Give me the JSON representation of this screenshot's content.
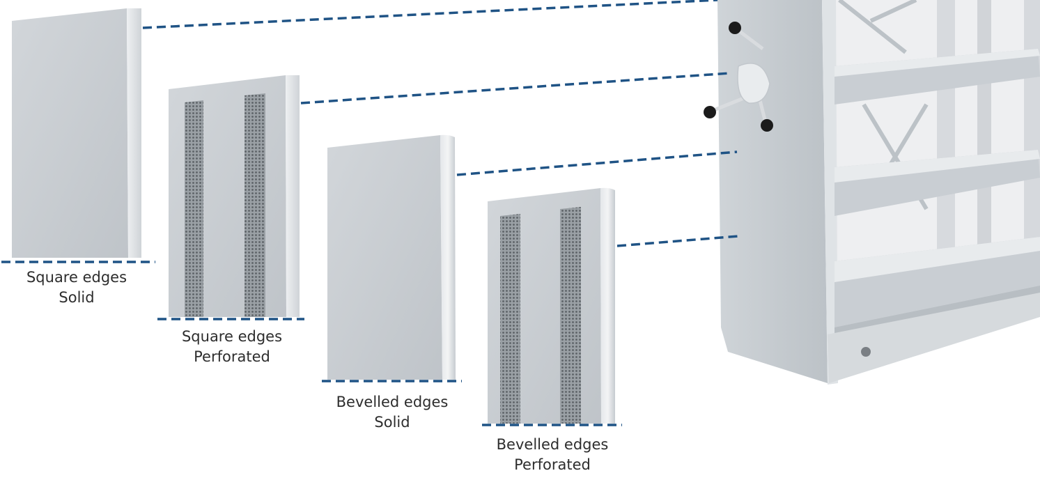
{
  "colors": {
    "leader_line": "#1f5385",
    "panel_face": "#c7ccd1",
    "panel_edge": "#dde1e4",
    "panel_top": "#e9ecee",
    "perforation": "#6d7378",
    "shelving": "#c9ced2",
    "knob": "#1b1b1b"
  },
  "panels": [
    {
      "id": "square-solid",
      "edge": "Square edges",
      "finish": "Solid"
    },
    {
      "id": "square-perforated",
      "edge": "Square edges",
      "finish": "Perforated"
    },
    {
      "id": "bevelled-solid",
      "edge": "Bevelled edges",
      "finish": "Solid"
    },
    {
      "id": "bevelled-perforated",
      "edge": "Bevelled edges",
      "finish": "Perforated"
    }
  ]
}
